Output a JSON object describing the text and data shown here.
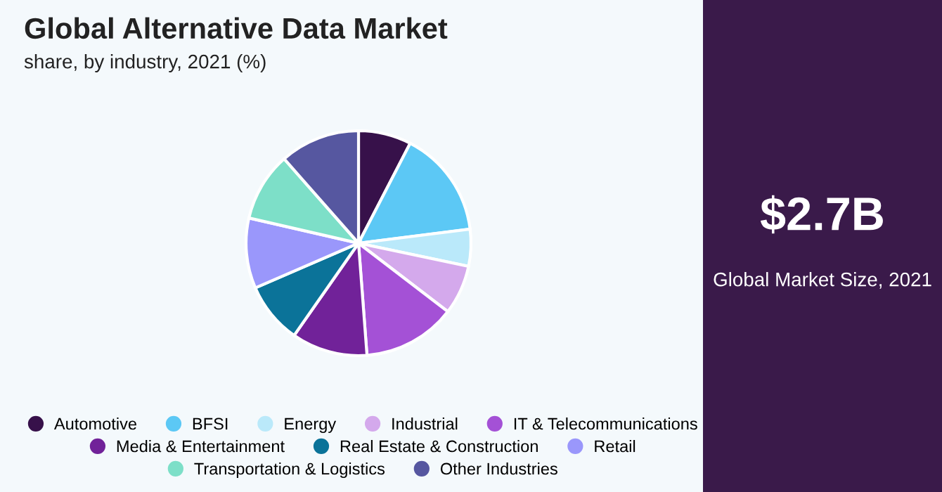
{
  "chart_data": {
    "type": "pie",
    "title": "Global Alternative Data Market",
    "subtitle": "share, by industry, 2021 (%)",
    "categories": [
      "Automotive",
      "BFSI",
      "Energy",
      "Industrial",
      "IT & Telecommunications",
      "Media & Entertainment",
      "Real Estate & Construction",
      "Retail",
      "Transportation & Logistics",
      "Other Industries"
    ],
    "values": [
      7.6,
      15.4,
      5.3,
      7.1,
      13.4,
      10.9,
      8.8,
      10.1,
      9.9,
      11.5
    ],
    "colors": [
      "#37114a",
      "#5cc8f5",
      "#bae9fa",
      "#d4a9ec",
      "#a451d6",
      "#712299",
      "#0b7399",
      "#9a97fb",
      "#7ddfc8",
      "#5657a0"
    ],
    "legend": "bottom",
    "annotations": [
      "$2.7B",
      "Global Market Size, 2021"
    ]
  }
}
